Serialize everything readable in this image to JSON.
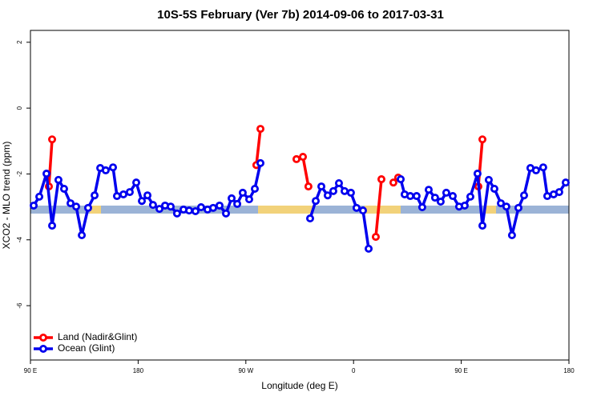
{
  "chart_data": {
    "type": "line",
    "title": "10S-5S February (Ver 7b)   2014-09-06 to 2017-03-31",
    "x_label": "Longitude (deg E)",
    "y_label": "XCO2 - MLO trend (ppm)",
    "xlim": [
      90,
      540
    ],
    "ylim": [
      -7.65,
      2.36
    ],
    "xticks": [
      {
        "value": 90,
        "label": "90 E"
      },
      {
        "value": 180,
        "label": "180"
      },
      {
        "value": 270,
        "label": "90 W"
      },
      {
        "value": 360,
        "label": "0"
      },
      {
        "value": 450,
        "label": "90 E"
      },
      {
        "value": 540,
        "label": "180"
      }
    ],
    "yticks": [
      2,
      0,
      -2,
      -4,
      -6
    ],
    "legend": "bottom-left",
    "series": [
      {
        "name": "Land (Nadir&Glint)",
        "color": "#ff0000",
        "x": [
          105.4,
          108.1,
          null,
          278.8,
          282.2,
          null,
          312.3,
          317.7,
          322.3,
          null,
          378.6,
          383.3,
          null,
          393.3,
          397.3,
          null,
          464.3,
          467.7
        ],
        "values": [
          -2.38,
          -0.95,
          null,
          -1.73,
          -0.63,
          null,
          -1.55,
          -1.48,
          -2.38,
          null,
          -3.91,
          -2.16,
          null,
          -2.26,
          -2.11,
          null,
          -2.38,
          -0.95
        ]
      },
      {
        "name": "Ocean (Glint)",
        "color": "#0000ee",
        "x": [
          92.7,
          97.4,
          103.4,
          108.1,
          113.4,
          118.1,
          123.5,
          128.2,
          132.9,
          138.2,
          143.6,
          148.3,
          152.9,
          159.0,
          162.3,
          167.7,
          173.0,
          178.4,
          183.1,
          187.8,
          192.4,
          197.8,
          202.5,
          207.2,
          212.5,
          217.9,
          222.6,
          227.9,
          232.6,
          238.0,
          242.7,
          248.0,
          253.4,
          258.1,
          262.8,
          267.4,
          272.8,
          277.5,
          282.2,
          null,
          323.7,
          328.4,
          333.1,
          338.4,
          343.1,
          347.8,
          352.5,
          357.8,
          362.5,
          367.9,
          372.6,
          null,
          399.4,
          402.7,
          407.4,
          412.7,
          417.4,
          422.8,
          428.1,
          432.8,
          437.5,
          442.9,
          448.2,
          452.9,
          457.6,
          463.6,
          467.7,
          473.0,
          477.7,
          483.1,
          487.7,
          492.4,
          497.8,
          502.5,
          507.8,
          512.5,
          518.5,
          521.9,
          527.2,
          531.9,
          537.3
        ],
        "values": [
          -2.96,
          -2.69,
          -1.99,
          -3.57,
          -2.18,
          -2.45,
          -2.89,
          -2.99,
          -3.86,
          -3.03,
          -2.65,
          -1.82,
          -1.89,
          -1.8,
          -2.67,
          -2.62,
          -2.55,
          -2.26,
          -2.82,
          -2.65,
          -2.94,
          -3.06,
          -2.96,
          -2.99,
          -3.2,
          -3.08,
          -3.11,
          -3.13,
          -3.01,
          -3.08,
          -3.03,
          -2.96,
          -3.2,
          -2.74,
          -2.91,
          -2.57,
          -2.77,
          -2.45,
          -1.67,
          null,
          -3.35,
          -2.82,
          -2.38,
          -2.65,
          -2.52,
          -2.28,
          -2.52,
          -2.57,
          -3.03,
          -3.11,
          -4.27,
          null,
          -2.16,
          -2.62,
          -2.67,
          -2.67,
          -3.01,
          -2.48,
          -2.72,
          -2.84,
          -2.57,
          -2.67,
          -2.99,
          -2.96,
          -2.69,
          -1.99,
          -3.57,
          -2.18,
          -2.45,
          -2.89,
          -2.99,
          -3.86,
          -3.03,
          -2.65,
          -1.82,
          -1.89,
          -1.8,
          -2.67,
          -2.62,
          -2.55,
          -2.26
        ]
      }
    ]
  }
}
